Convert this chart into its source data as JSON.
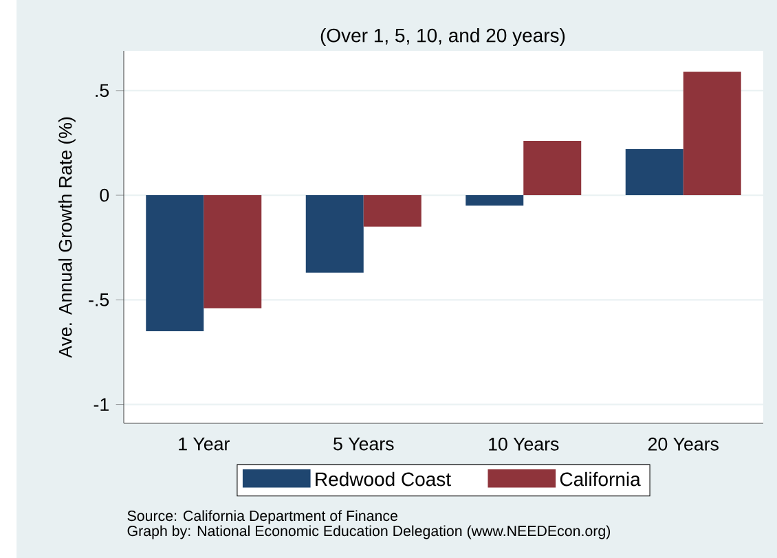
{
  "chart_data": {
    "type": "bar",
    "subtitle": "(Over 1, 5, 10, and 20 years)",
    "ylabel": "Ave. Annual Growth Rate (%)",
    "categories": [
      "1 Year",
      "5 Years",
      "10 Years",
      "20 Years"
    ],
    "series": [
      {
        "name": "Redwood Coast",
        "color": "#1f4670",
        "values": [
          -0.65,
          -0.37,
          -0.05,
          0.22
        ]
      },
      {
        "name": "California",
        "color": "#8f343b",
        "values": [
          -0.54,
          -0.15,
          0.26,
          0.59
        ]
      }
    ],
    "ylim": [
      -1.09,
      0.69
    ],
    "yticks": [
      {
        "value": -1,
        "label": "-1"
      },
      {
        "value": -0.5,
        "label": "-.5"
      },
      {
        "value": 0,
        "label": "0"
      },
      {
        "value": 0.5,
        "label": ".5"
      }
    ],
    "grid": "y",
    "legend": "bottom",
    "annotations": [
      "Source: California Department of Finance",
      "Graph by: National Economic Education Delegation (www.NEEDEcon.org)"
    ]
  }
}
